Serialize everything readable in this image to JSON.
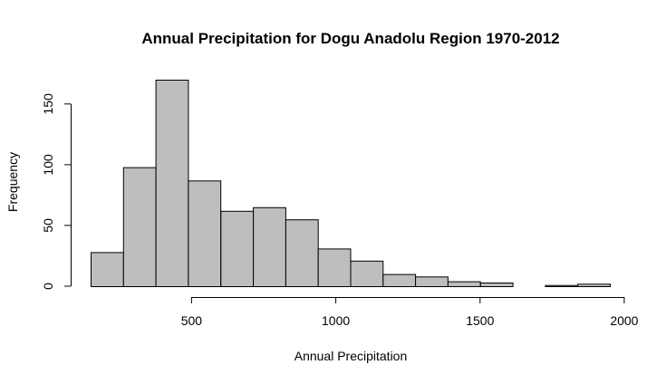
{
  "chart_data": {
    "type": "bar",
    "title": "Annual Precipitation for Dogu Anadolu Region 1970-2012",
    "xlabel": "Annual Precipitation",
    "ylabel": "Frequency",
    "bin_width": 112.5,
    "bins": [
      {
        "start": 150,
        "end": 262.5,
        "count": 28
      },
      {
        "start": 262.5,
        "end": 375,
        "count": 98
      },
      {
        "start": 375,
        "end": 487.5,
        "count": 170
      },
      {
        "start": 487.5,
        "end": 600,
        "count": 87
      },
      {
        "start": 600,
        "end": 712.5,
        "count": 62
      },
      {
        "start": 712.5,
        "end": 825,
        "count": 65
      },
      {
        "start": 825,
        "end": 937.5,
        "count": 55
      },
      {
        "start": 937.5,
        "end": 1050,
        "count": 31
      },
      {
        "start": 1050,
        "end": 1162.5,
        "count": 21
      },
      {
        "start": 1162.5,
        "end": 1275,
        "count": 10
      },
      {
        "start": 1275,
        "end": 1387.5,
        "count": 8
      },
      {
        "start": 1387.5,
        "end": 1500,
        "count": 4
      },
      {
        "start": 1500,
        "end": 1612.5,
        "count": 3
      },
      {
        "start": 1612.5,
        "end": 1725,
        "count": 0
      },
      {
        "start": 1725,
        "end": 1837.5,
        "count": 1
      },
      {
        "start": 1837.5,
        "end": 1950,
        "count": 2
      }
    ],
    "xlim": [
      150,
      1950
    ],
    "ylim": [
      0,
      170
    ],
    "x_ticks": [
      500,
      1000,
      1500,
      2000
    ],
    "y_ticks": [
      0,
      50,
      100,
      150
    ],
    "grid": false,
    "legend": "none",
    "colors": {
      "bar_fill": "#bebebe",
      "bar_stroke": "#000000"
    }
  }
}
